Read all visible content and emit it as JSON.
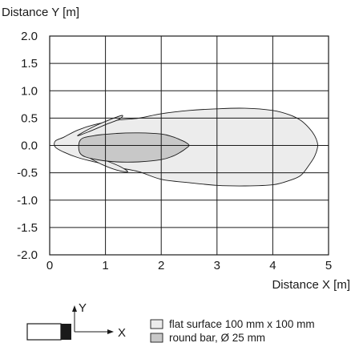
{
  "chart_data": {
    "type": "area",
    "xlabel": "Distance X [m]",
    "ylabel": "Distance Y [m]",
    "xlim": [
      0,
      5
    ],
    "ylim": [
      -2.0,
      2.0
    ],
    "x_ticks": [
      "0",
      "1",
      "2",
      "3",
      "4",
      "5"
    ],
    "y_ticks": [
      "2.0",
      "1.5",
      "1.0",
      "0.5",
      "0.0",
      "-0.5",
      "-1.0",
      "-1.5",
      "-2.0"
    ],
    "grid": true,
    "legend_position": "bottom-right",
    "series": [
      {
        "name": "flat surface 100 mm x 100 mm",
        "color": "#ececec",
        "outline": [
          [
            0.1,
            0.08
          ],
          [
            0.25,
            0.15
          ],
          [
            0.5,
            0.28
          ],
          [
            0.8,
            0.38
          ],
          [
            1.2,
            0.46
          ],
          [
            1.6,
            0.5
          ],
          [
            2.0,
            0.58
          ],
          [
            2.5,
            0.64
          ],
          [
            3.0,
            0.67
          ],
          [
            3.5,
            0.68
          ],
          [
            4.0,
            0.64
          ],
          [
            4.3,
            0.56
          ],
          [
            4.5,
            0.46
          ],
          [
            4.65,
            0.32
          ],
          [
            4.75,
            0.18
          ],
          [
            4.8,
            0.05
          ],
          [
            4.8,
            -0.05
          ],
          [
            4.75,
            -0.2
          ],
          [
            4.65,
            -0.36
          ],
          [
            4.5,
            -0.55
          ],
          [
            4.3,
            -0.64
          ],
          [
            4.0,
            -0.72
          ],
          [
            3.5,
            -0.74
          ],
          [
            3.0,
            -0.73
          ],
          [
            2.5,
            -0.68
          ],
          [
            2.0,
            -0.62
          ],
          [
            1.6,
            -0.48
          ],
          [
            1.2,
            -0.4
          ],
          [
            0.8,
            -0.3
          ],
          [
            0.5,
            -0.22
          ],
          [
            0.25,
            -0.12
          ],
          [
            0.1,
            -0.03
          ]
        ],
        "lobes": [
          [
            [
              0.5,
              0.18
            ],
            [
              0.8,
              0.35
            ],
            [
              1.1,
              0.48
            ],
            [
              1.3,
              0.55
            ],
            [
              1.25,
              0.48
            ],
            [
              1.0,
              0.38
            ],
            [
              0.7,
              0.25
            ]
          ],
          [
            [
              0.6,
              -0.15
            ],
            [
              0.9,
              -0.33
            ],
            [
              1.2,
              -0.45
            ],
            [
              1.4,
              -0.48
            ],
            [
              1.25,
              -0.38
            ],
            [
              0.95,
              -0.25
            ],
            [
              0.7,
              -0.12
            ]
          ]
        ]
      },
      {
        "name": "round bar, Ø 25 mm",
        "color": "#c8c8c8",
        "outline": [
          [
            0.55,
            0.1
          ],
          [
            0.8,
            0.18
          ],
          [
            1.2,
            0.22
          ],
          [
            1.6,
            0.23
          ],
          [
            2.0,
            0.21
          ],
          [
            2.2,
            0.16
          ],
          [
            2.35,
            0.1
          ],
          [
            2.45,
            0.05
          ],
          [
            2.5,
            0.0
          ],
          [
            2.45,
            -0.05
          ],
          [
            2.35,
            -0.12
          ],
          [
            2.2,
            -0.2
          ],
          [
            2.0,
            -0.26
          ],
          [
            1.6,
            -0.3
          ],
          [
            1.2,
            -0.3
          ],
          [
            0.8,
            -0.25
          ],
          [
            0.55,
            -0.15
          ]
        ]
      }
    ]
  },
  "legend": {
    "items": [
      {
        "label": "flat surface 100 mm x 100 mm",
        "color": "#ececec"
      },
      {
        "label": "round bar, Ø 25 mm",
        "color": "#c8c8c8"
      }
    ]
  },
  "sensor_diagram": {
    "axis_y_label": "Y",
    "axis_x_label": "X"
  }
}
